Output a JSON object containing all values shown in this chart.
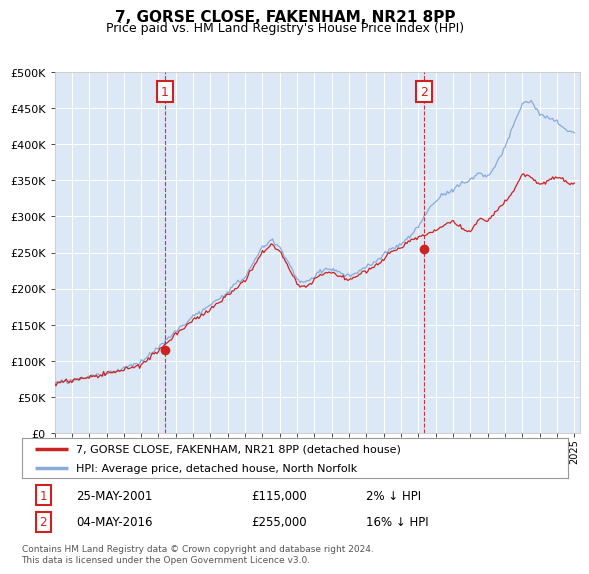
{
  "title": "7, GORSE CLOSE, FAKENHAM, NR21 8PP",
  "subtitle": "Price paid vs. HM Land Registry's House Price Index (HPI)",
  "legend_line1": "7, GORSE CLOSE, FAKENHAM, NR21 8PP (detached house)",
  "legend_line2": "HPI: Average price, detached house, North Norfolk",
  "annotation1_label": "1",
  "annotation1_date": "25-MAY-2001",
  "annotation1_price": "£115,000",
  "annotation1_hpi": "2% ↓ HPI",
  "annotation2_label": "2",
  "annotation2_date": "04-MAY-2016",
  "annotation2_price": "£255,000",
  "annotation2_hpi": "16% ↓ HPI",
  "footer": "Contains HM Land Registry data © Crown copyright and database right 2024.\nThis data is licensed under the Open Government Licence v3.0.",
  "bg_color": "#ffffff",
  "plot_bg_color": "#dce8f5",
  "red_color": "#cc2222",
  "blue_color": "#88aadd",
  "vline_color": "#cc2222",
  "marker_box_color": "#cc2222",
  "ylim": [
    0,
    500000
  ],
  "yticks": [
    0,
    50000,
    100000,
    150000,
    200000,
    250000,
    300000,
    350000,
    400000,
    450000,
    500000
  ],
  "x_start_year": 1995,
  "x_end_year": 2025,
  "sale1_year": 2001.38,
  "sale1_price": 115000,
  "sale2_year": 2016.33,
  "sale2_price": 255000
}
